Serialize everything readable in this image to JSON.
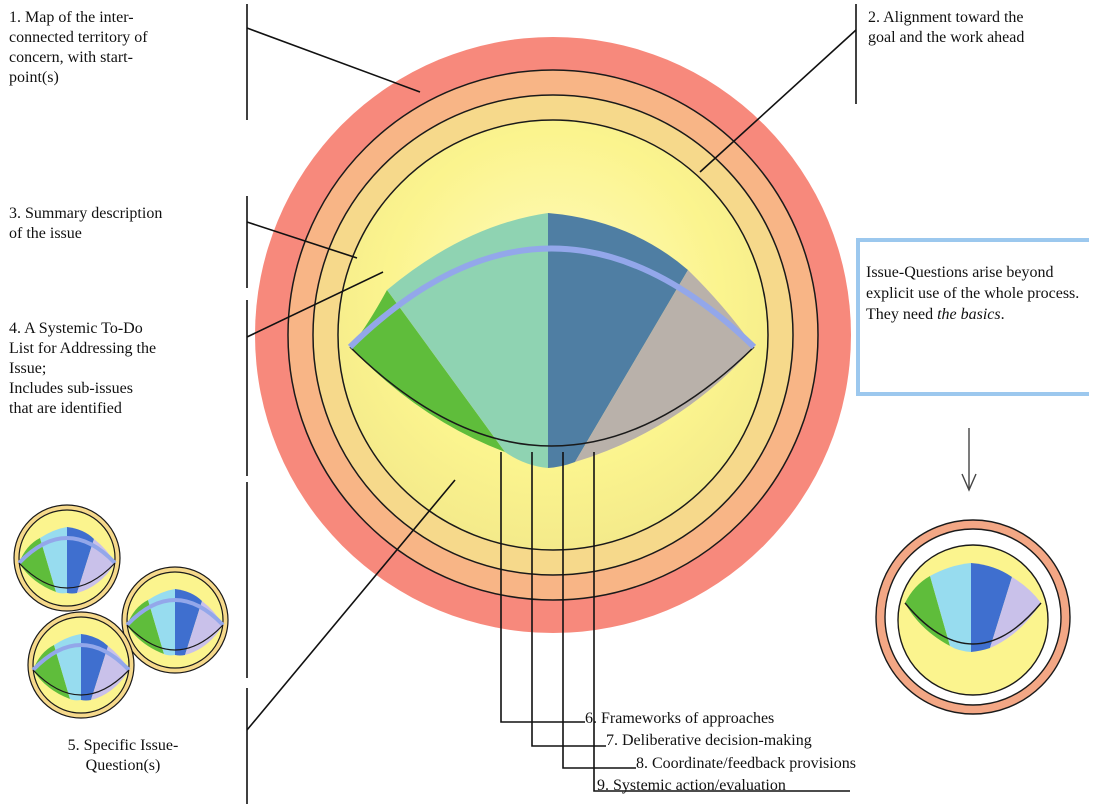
{
  "labels": {
    "map": "1. Map of the inter-\nconnected territory of\nconcern, with start-\npoint(s)",
    "alignment": "2. Alignment toward the\ngoal and the work ahead",
    "summary": "3. Summary description\nof the issue",
    "todo": "4. A Systemic To-Do\nList for Addressing the\nIssue;\nIncludes sub-issues\nthat are identified",
    "questions": "5. Specific Issue-\nQuestion(s)"
  },
  "steps": [
    "6. Frameworks of approaches",
    "7. Deliberative decision-making",
    "8. Coordinate/feedback provisions",
    "9. Systemic action/evaluation"
  ],
  "note": {
    "text": "Issue-Questions arise beyond explicit use of the whole process. They need ",
    "emphasis": "the basics",
    "end": "."
  },
  "colors": {
    "outer_ring": "#f7897c",
    "second_ring": "#f8b586",
    "third_ring": "#f6d98b",
    "inner_disc": "#fbf48e",
    "segment_green": "#5fbd3b",
    "segment_teal": "#8fd3b2",
    "segment_blue": "#4f7ea3",
    "segment_grey": "#b9b1aa",
    "arc_blue": "#93a7ea",
    "note_border": "#9cc8ee"
  }
}
